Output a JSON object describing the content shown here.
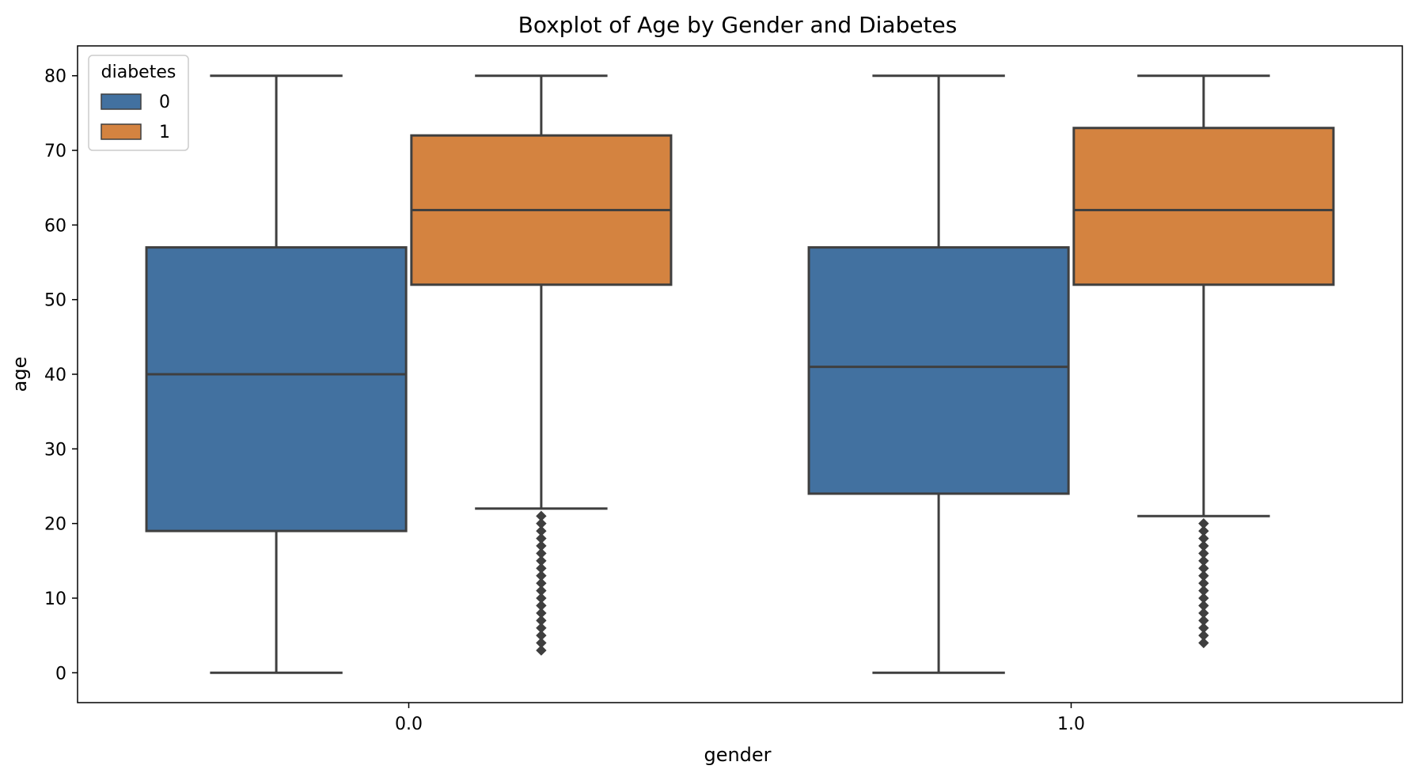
{
  "chart_data": {
    "type": "boxplot",
    "title": "Boxplot of Age by Gender and Diabetes",
    "xlabel": "gender",
    "ylabel": "age",
    "categories": [
      "0.0",
      "1.0"
    ],
    "ylim": [
      -4,
      84
    ],
    "yticks": [
      0,
      10,
      20,
      30,
      40,
      50,
      60,
      70,
      80
    ],
    "grid": false,
    "legend": {
      "title": "diabetes",
      "position": "top-left",
      "entries": [
        "0",
        "1"
      ]
    },
    "series": [
      {
        "name": "0",
        "color": "#4271a0",
        "boxes": [
          {
            "category": "0.0",
            "whisker_low": 0,
            "q1": 19,
            "median": 40,
            "q3": 57,
            "whisker_high": 80,
            "outliers": []
          },
          {
            "category": "1.0",
            "whisker_low": 0,
            "q1": 24,
            "median": 41,
            "q3": 57,
            "whisker_high": 80,
            "outliers": []
          }
        ]
      },
      {
        "name": "1",
        "color": "#d48340",
        "boxes": [
          {
            "category": "0.0",
            "whisker_low": 22,
            "q1": 52,
            "median": 62,
            "q3": 72,
            "whisker_high": 80,
            "outliers": [
              21,
              20,
              19,
              18,
              17,
              16,
              15,
              14,
              13,
              12,
              11,
              10,
              9,
              8,
              7,
              6,
              5,
              4,
              3
            ]
          },
          {
            "category": "1.0",
            "whisker_low": 21,
            "q1": 52,
            "median": 62,
            "q3": 73,
            "whisker_high": 80,
            "outliers": [
              20,
              19,
              18,
              17,
              16,
              15,
              14,
              13,
              12,
              11,
              10,
              9,
              8,
              7,
              6,
              5,
              4
            ]
          }
        ]
      }
    ]
  }
}
